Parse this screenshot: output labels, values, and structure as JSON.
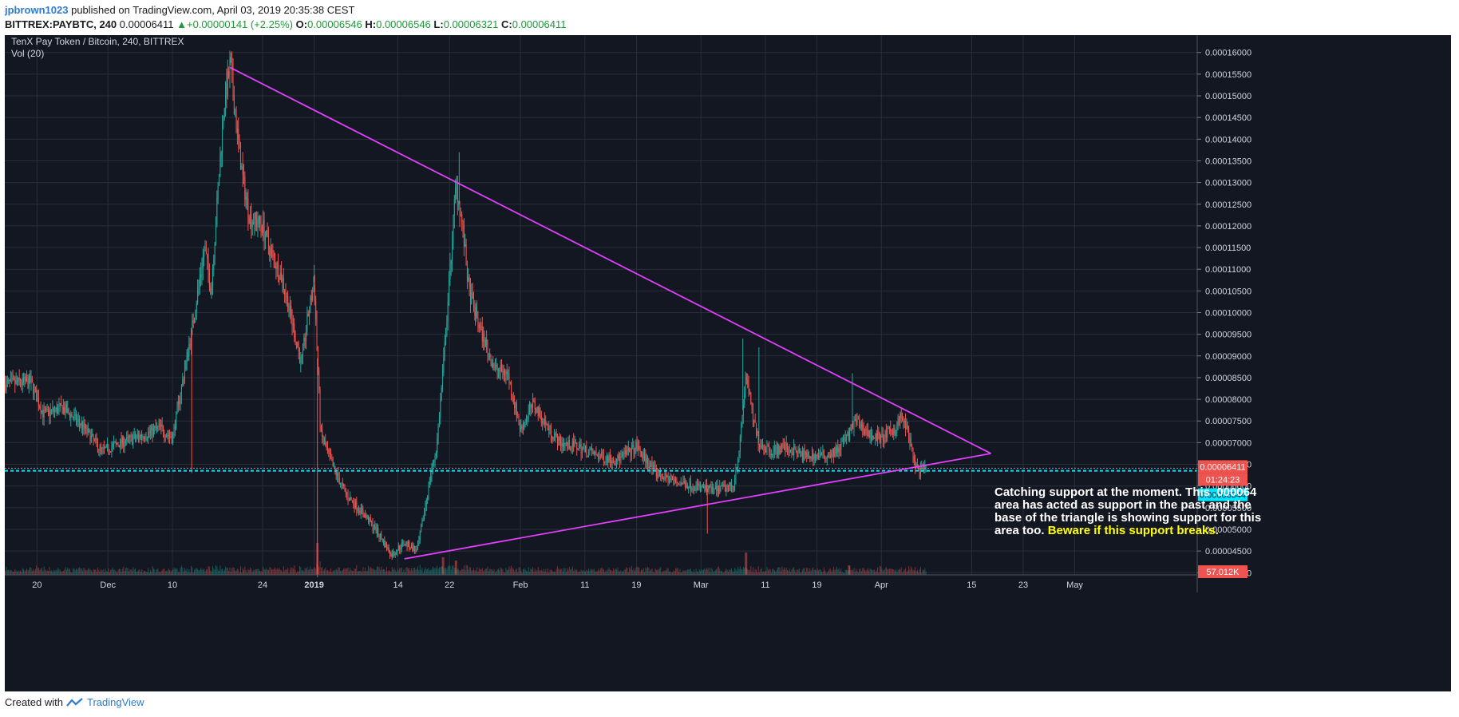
{
  "header": {
    "user": "jpbrown1023",
    "published": "published on TradingView.com, April 03, 2019 20:35:38 CEST",
    "symbol": "BITTREX:PAYBTC, 240",
    "last": "0.00006411",
    "change": "+0.00000141 (+2.25%)",
    "o_label": "O:",
    "o": "0.00006546",
    "h_label": "H:",
    "h": "0.00006546",
    "l_label": "L:",
    "l": "0.00006321",
    "c_label": "C:",
    "c": "0.00006411"
  },
  "footer": {
    "created": "Created with",
    "brand": "TradingView"
  },
  "colors": {
    "background": "#131722",
    "grid": "#2a2e39",
    "up": "#26a69a",
    "down": "#ef5350",
    "trendline": "#e040fb",
    "support": "#00e5ff",
    "highlight": "#ffff00"
  },
  "chart_data": {
    "type": "candlestick",
    "title": "TenX Pay Token / Bitcoin, 240, BITTREX",
    "subtitle": "Vol (20)",
    "xlabel": "",
    "ylabel": "",
    "ylim": [
      3.95e-05,
      0.000164
    ],
    "y_ticks": [
      "0.00016000",
      "0.00015500",
      "0.00015000",
      "0.00014500",
      "0.00014000",
      "0.00013500",
      "0.00013000",
      "0.00012500",
      "0.00012000",
      "0.00011500",
      "0.00011000",
      "0.00010500",
      "0.00010000",
      "0.00009500",
      "0.00009000",
      "0.00008500",
      "0.00008000",
      "0.00007500",
      "0.00007000",
      "0.00006500",
      "0.00006000",
      "0.00005500",
      "0.00005000",
      "0.00004500",
      "0.00004000"
    ],
    "x_ticks": [
      "20",
      "Dec",
      "10",
      "24",
      "2019",
      "14",
      "22",
      "Feb",
      "11",
      "19",
      "Mar",
      "11",
      "19",
      "Apr",
      "15",
      "23",
      "May"
    ],
    "x_tick_days": [
      0,
      11,
      21,
      35,
      43,
      56,
      64,
      75,
      85,
      93,
      103,
      113,
      121,
      131,
      145,
      153,
      161
    ],
    "x_range_days": [
      -5,
      180
    ],
    "price_path": [
      [
        -5,
        8.35e-05
      ],
      [
        -1,
        8.4e-05
      ],
      [
        1,
        7.65e-05
      ],
      [
        4,
        7.8e-05
      ],
      [
        7,
        7.4e-05
      ],
      [
        10,
        6.8e-05
      ],
      [
        13,
        7e-05
      ],
      [
        17,
        7.2e-05
      ],
      [
        19,
        7.35e-05
      ],
      [
        21,
        7.1e-05
      ],
      [
        24,
        9.6e-05
      ],
      [
        26,
        0.000115
      ],
      [
        27,
        0.000105
      ],
      [
        29,
        0.000148
      ],
      [
        30,
        0.000157
      ],
      [
        31,
        0.000142
      ],
      [
        32,
        0.00013
      ],
      [
        33,
        0.000122
      ],
      [
        35,
        0.00012
      ],
      [
        36,
        0.000115
      ],
      [
        38,
        0.000108
      ],
      [
        40,
        9.5e-05
      ],
      [
        41,
        8.8e-05
      ],
      [
        42,
        9.9e-05
      ],
      [
        43,
        0.000107
      ],
      [
        44,
        7.2e-05
      ],
      [
        46,
        6.4e-05
      ],
      [
        48,
        5.8e-05
      ],
      [
        51,
        5.3e-05
      ],
      [
        53,
        4.9e-05
      ],
      [
        55,
        4.4e-05
      ],
      [
        57,
        4.7e-05
      ],
      [
        59,
        4.5e-05
      ],
      [
        61,
        6.2e-05
      ],
      [
        62,
        6.9e-05
      ],
      [
        63,
        8.7e-05
      ],
      [
        64,
        0.000108
      ],
      [
        65,
        0.00013
      ],
      [
        66,
        0.00012
      ],
      [
        67,
        0.000105
      ],
      [
        69,
        9.5e-05
      ],
      [
        71,
        8.7e-05
      ],
      [
        73,
        8.6e-05
      ],
      [
        75,
        7.3e-05
      ],
      [
        77,
        7.9e-05
      ],
      [
        79,
        7.4e-05
      ],
      [
        81,
        7e-05
      ],
      [
        84,
        6.9e-05
      ],
      [
        87,
        6.7e-05
      ],
      [
        90,
        6.6e-05
      ],
      [
        93,
        6.9e-05
      ],
      [
        96,
        6.3e-05
      ],
      [
        99,
        6.1e-05
      ],
      [
        102,
        6e-05
      ],
      [
        105,
        5.9e-05
      ],
      [
        108,
        6e-05
      ],
      [
        109,
        6.9e-05
      ],
      [
        110,
        8.6e-05
      ],
      [
        111,
        7.6e-05
      ],
      [
        112,
        7e-05
      ],
      [
        114,
        6.8e-05
      ],
      [
        116,
        6.9e-05
      ],
      [
        119,
        6.7e-05
      ],
      [
        122,
        6.7e-05
      ],
      [
        124,
        6.8e-05
      ],
      [
        126,
        7.2e-05
      ],
      [
        127,
        7.5e-05
      ],
      [
        129,
        7.2e-05
      ],
      [
        131,
        7.1e-05
      ],
      [
        133,
        7.3e-05
      ],
      [
        134,
        7.6e-05
      ],
      [
        135,
        7.3e-05
      ],
      [
        136,
        6.6e-05
      ],
      [
        137,
        6.3e-05
      ],
      [
        138,
        6.41e-05
      ]
    ],
    "spikes": [
      [
        30,
        0.000159
      ],
      [
        43,
        0.000111
      ],
      [
        43.5,
        3.9e-05
      ],
      [
        65.5,
        0.000137
      ],
      [
        68,
        9.7e-05
      ],
      [
        109.5,
        9.4e-05
      ],
      [
        104,
        4.9e-05
      ],
      [
        112,
        9.2e-05
      ],
      [
        126.5,
        8.6e-05
      ],
      [
        24,
        6.3e-05
      ]
    ],
    "trendlines": [
      {
        "from": [
          30,
          0.0001565
        ],
        "to": [
          148,
          6.75e-05
        ]
      },
      {
        "from": [
          57,
          4.32e-05
        ],
        "to": [
          148,
          6.75e-05
        ]
      }
    ],
    "support_level": 6.35e-05,
    "last_price_label": "0.00006411",
    "countdown_label": "01:24:23",
    "support_price_label": "0.00006344",
    "volume_label": "57.012K",
    "annotation": {
      "text": "Catching support at the moment. This .000064 area has acted as support in the past and the base of the triangle is showing support for this area too.",
      "highlight": "Beware if this support breaks."
    }
  }
}
